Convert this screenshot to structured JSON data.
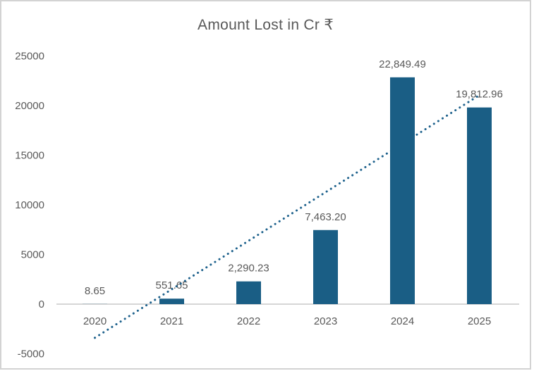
{
  "chart_data": {
    "type": "bar",
    "title": "Amount Lost in Cr ₹",
    "categories": [
      "2020",
      "2021",
      "2022",
      "2023",
      "2024",
      "2025"
    ],
    "values": [
      8.65,
      551.65,
      2290.23,
      7463.2,
      22849.49,
      19812.96
    ],
    "value_labels": [
      "8.65",
      "551.65",
      "2,290.23",
      "7,463.20",
      "22,849.49",
      "19,812.96"
    ],
    "y_ticks": [
      25000,
      20000,
      15000,
      10000,
      5000,
      0,
      -5000
    ],
    "ylim": [
      -5000,
      25000
    ],
    "xlabel": "",
    "ylabel": "",
    "grid": false,
    "legend": false,
    "trendline": {
      "type": "linear",
      "style": "dotted"
    },
    "colors": {
      "bar": "#1A5E85",
      "trendline": "#1D618C",
      "text": "#595959",
      "axis_line": "#D6D6D6",
      "border": "#D3D3D3",
      "background": "#FFFFFF"
    }
  }
}
